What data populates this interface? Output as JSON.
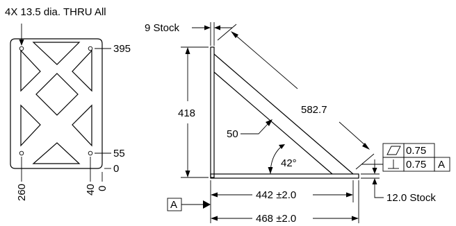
{
  "plate": {
    "hole_callout": "4X 13.5 dia. THRU All",
    "dim_395": "395",
    "dim_55": "55",
    "dim_0_right": "0",
    "dim_260": "260",
    "dim_40": "40",
    "dim_0_bottom": "0"
  },
  "bracket": {
    "stock_9": "9 Stock",
    "height_418": "418",
    "diag_582": "582.7",
    "brace_50": "50",
    "angle_42": "42°",
    "tol_flat": "0.75",
    "tol_perp": "0.75",
    "tol_datum_ref": "A",
    "stock_12": "12.0 Stock",
    "width_442": "442 ±2.0",
    "width_468": "468 ±2.0",
    "datum_label": "A"
  },
  "icons": {
    "flatness": "parallelogram",
    "perpendicularity": "perpendicular-symbol"
  }
}
